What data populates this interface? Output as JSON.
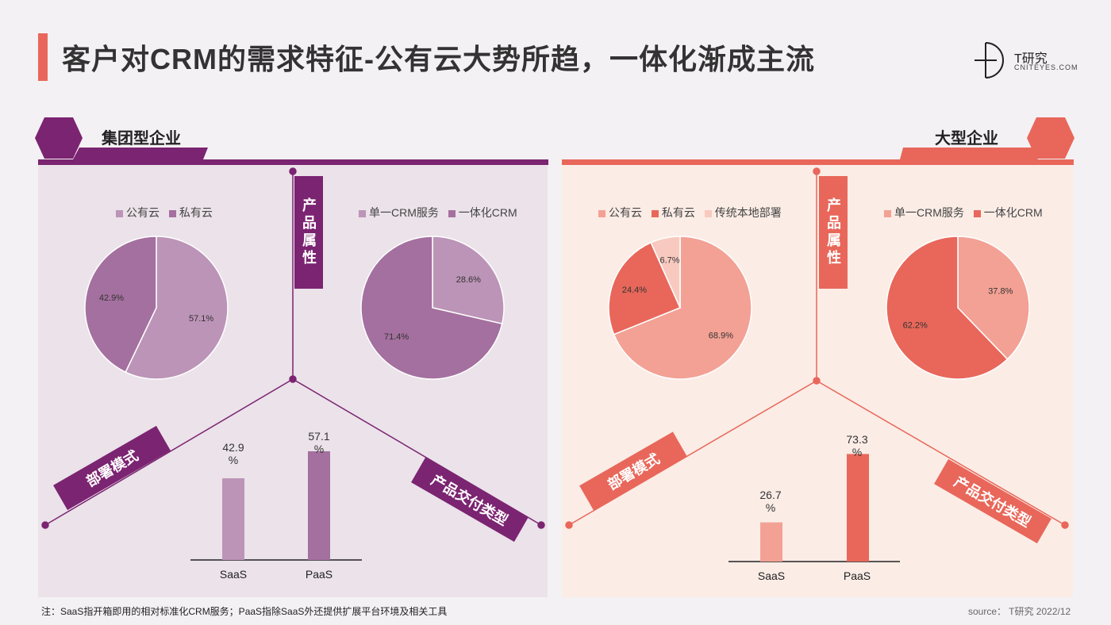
{
  "header": {
    "title": "客户对CRM的需求特征-公有云大势所趋，一体化渐成主流",
    "logo_main": "T研究",
    "logo_sub": "CNITEYES.COM"
  },
  "colors": {
    "purple_dark": "#7b2471",
    "purple_mid": "#a4709f",
    "purple_light": "#bc94b7",
    "coral_dark": "#e8675a",
    "coral_light": "#f3a195",
    "coral_pale": "#f8c9bf"
  },
  "left_section": {
    "label": "集团型企业",
    "tag_product": "产品属性",
    "tag_deploy": "部署模式",
    "tag_delivery": "产品交付类型"
  },
  "right_section": {
    "label": "大型企业",
    "tag_product": "产品属性",
    "tag_deploy": "部署模式",
    "tag_delivery": "产品交付类型"
  },
  "chart_data": [
    {
      "id": "group-deploy",
      "type": "pie",
      "legend": [
        "公有云",
        "私有云"
      ],
      "values": [
        57.1,
        42.9
      ],
      "labels": [
        "57.1%",
        "42.9%"
      ],
      "colors": [
        "#bc94b7",
        "#a4709f"
      ]
    },
    {
      "id": "group-product",
      "type": "pie",
      "legend": [
        "单一CRM服务",
        "一体化CRM"
      ],
      "values": [
        28.6,
        71.4
      ],
      "labels": [
        "28.6%",
        "71.4%"
      ],
      "colors": [
        "#bc94b7",
        "#a4709f"
      ]
    },
    {
      "id": "group-delivery",
      "type": "bar",
      "categories": [
        "SaaS",
        "PaaS"
      ],
      "values": [
        42.9,
        57.1
      ],
      "labels": [
        "42.9\n%",
        "57.1\n%"
      ],
      "colors": [
        "#bc94b7",
        "#a4709f"
      ],
      "ylim": [
        0,
        80
      ]
    },
    {
      "id": "large-deploy",
      "type": "pie",
      "legend": [
        "公有云",
        "私有云",
        "传统本地部署"
      ],
      "values": [
        68.9,
        24.4,
        6.7
      ],
      "labels": [
        "68.9%",
        "24.4%",
        "6.7%"
      ],
      "colors": [
        "#f3a195",
        "#e8675a",
        "#f8c9bf"
      ]
    },
    {
      "id": "large-product",
      "type": "pie",
      "legend": [
        "单一CRM服务",
        "一体化CRM"
      ],
      "values": [
        37.8,
        62.2
      ],
      "labels": [
        "37.8%",
        "62.2%"
      ],
      "colors": [
        "#f3a195",
        "#e8675a"
      ]
    },
    {
      "id": "large-delivery",
      "type": "bar",
      "categories": [
        "SaaS",
        "PaaS"
      ],
      "values": [
        26.7,
        73.3
      ],
      "labels": [
        "26.7\n%",
        "73.3\n%"
      ],
      "colors": [
        "#f3a195",
        "#e8675a"
      ],
      "ylim": [
        0,
        80
      ]
    }
  ],
  "footer": {
    "note": "注：SaaS指开箱即用的相对标准化CRM服务；PaaS指除SaaS外还提供扩展平台环境及相关工具",
    "source": "source：   T研究 2022/12"
  }
}
